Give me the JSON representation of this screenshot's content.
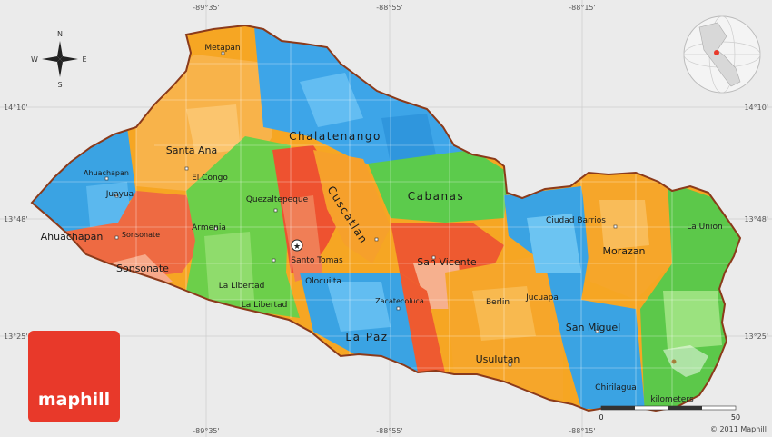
{
  "map": {
    "coords_top": [
      "-89°35'",
      "-88°55'",
      "-88°15'"
    ],
    "coords_bottom": [
      "-89°35'",
      "-88°55'",
      "-88°15'"
    ],
    "coords_left": [
      "14°10'",
      "13°48'",
      "13°25'"
    ],
    "coords_right": [
      "14°10'",
      "13°48'",
      "13°25'"
    ],
    "compass": {
      "n": "N",
      "s": "S",
      "e": "E",
      "w": "W"
    },
    "labels": {
      "metapan": "Metapan",
      "chalatenango": "Chalatenango",
      "santa_ana_dept": "Santa Ana",
      "el_congo": "El Congo",
      "ahuachapan_city": "Ahuachapan",
      "juayua": "Juayua",
      "quezaltepeque": "Quezaltepeque",
      "cuscatlan": "Cuscatlan",
      "cabanas": "Cabanas",
      "ciudad_barrios": "Ciudad Barrios",
      "la_union": "La Union",
      "ahuachapan_dept": "Ahuachapan",
      "sonsonate_city": "Sonsonate",
      "armenia": "Armenia",
      "santo_tomas": "Santo Tomas",
      "san_vicente": "San Vicente",
      "morazan": "Morazan",
      "sonsonate_dept": "Sonsonate",
      "la_libertad_dept": "La Libertad",
      "la_libertad_city": "La Libertad",
      "olocuilta": "Olocuilta",
      "zacatecoluca": "Zacatecoluca",
      "berlin": "Berlin",
      "jucuapa": "Jucuapa",
      "san_miguel": "San Miguel",
      "la_paz": "La Paz",
      "usulutan": "Usulutan",
      "chirilagua": "Chirilagua"
    },
    "scale": {
      "unit": "kilometers",
      "min": "0",
      "max": "50"
    },
    "brand": "maphill",
    "copyright": "© 2011 Maphill"
  }
}
